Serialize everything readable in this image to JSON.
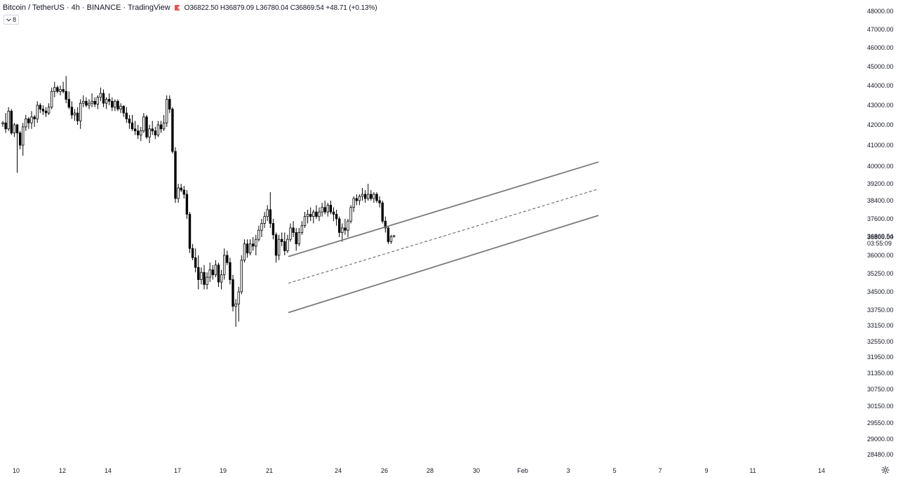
{
  "header": {
    "title": "Bitcoin / TetherUS · 4h · BINANCE · TradingView",
    "open": "O36822.50",
    "high": "H36879.09",
    "low": "L36780.04",
    "close": "C36869.54",
    "change": "+48.71 (+0.13%)"
  },
  "study_toggle": {
    "label": "8",
    "icon": "chevron-down-icon"
  },
  "price_label": {
    "price": "36869.54",
    "countdown": "03:55:09"
  },
  "settings_icon": "gear-icon",
  "chart_data": {
    "type": "candlestick",
    "symbol": "Bitcoin / TetherUS",
    "interval": "4h",
    "exchange": "BINANCE",
    "y_ticks": [
      "48000.00",
      "47000.00",
      "46000.00",
      "45000.00",
      "44000.00",
      "43000.00",
      "42000.00",
      "41000.00",
      "40000.00",
      "39200.00",
      "38400.00",
      "37600.00",
      "36800.00",
      "36000.00",
      "35250.00",
      "34500.00",
      "33750.00",
      "33150.00",
      "32550.00",
      "31950.00",
      "31350.00",
      "30750.00",
      "30150.00",
      "29550.00",
      "29000.00",
      "28480.00"
    ],
    "x_ticks": [
      "10",
      "12",
      "14",
      "17",
      "19",
      "21",
      "24",
      "26",
      "28",
      "30",
      "Feb",
      "3",
      "5",
      "7",
      "9",
      "11",
      "14"
    ],
    "scale": "log",
    "grid": false,
    "candle_style": {
      "up": "hollow",
      "down": "filled",
      "color": "#000000"
    },
    "candles": [
      [
        42050,
        42200,
        41900,
        42100
      ],
      [
        42100,
        42600,
        41600,
        41800
      ],
      [
        41800,
        42900,
        41700,
        42700
      ],
      [
        42700,
        42800,
        41500,
        41600
      ],
      [
        41600,
        42100,
        41400,
        42000
      ],
      [
        42000,
        42050,
        39700,
        41600
      ],
      [
        41600,
        41700,
        40800,
        41000
      ],
      [
        41000,
        42100,
        40500,
        41900
      ],
      [
        41900,
        42500,
        41700,
        42300
      ],
      [
        42300,
        42400,
        41800,
        42100
      ],
      [
        42100,
        42700,
        41800,
        42400
      ],
      [
        42400,
        42500,
        41900,
        42300
      ],
      [
        42300,
        43200,
        42100,
        43000
      ],
      [
        43000,
        43100,
        42600,
        42800
      ],
      [
        42800,
        43000,
        42500,
        42700
      ],
      [
        42700,
        42900,
        42400,
        42600
      ],
      [
        42600,
        43100,
        42500,
        42900
      ],
      [
        42900,
        43900,
        42800,
        43700
      ],
      [
        43700,
        44200,
        43400,
        43900
      ],
      [
        43900,
        44000,
        43600,
        43700
      ],
      [
        43700,
        44000,
        43500,
        43800
      ],
      [
        43800,
        44200,
        43600,
        43700
      ],
      [
        43700,
        44500,
        43100,
        43300
      ],
      [
        43300,
        43700,
        42800,
        42900
      ],
      [
        42900,
        43200,
        42300,
        42500
      ],
      [
        42500,
        42800,
        42200,
        42600
      ],
      [
        42600,
        42900,
        42000,
        42200
      ],
      [
        42200,
        43300,
        41800,
        43100
      ],
      [
        43100,
        43500,
        42900,
        43200
      ],
      [
        43200,
        43400,
        42900,
        43000
      ],
      [
        43000,
        43300,
        42800,
        43100
      ],
      [
        43100,
        43600,
        42900,
        43200
      ],
      [
        43200,
        43400,
        42900,
        43050
      ],
      [
        43050,
        43500,
        42800,
        43400
      ],
      [
        43400,
        43900,
        43200,
        43600
      ],
      [
        43600,
        43800,
        42900,
        43100
      ],
      [
        43100,
        43400,
        42800,
        43300
      ],
      [
        43300,
        43600,
        43000,
        43200
      ],
      [
        43200,
        43400,
        42700,
        42900
      ],
      [
        42900,
        43300,
        42700,
        43200
      ],
      [
        43200,
        43300,
        42700,
        42800
      ],
      [
        42800,
        43100,
        42600,
        42950
      ],
      [
        42950,
        43000,
        42400,
        42600
      ],
      [
        42600,
        42900,
        42100,
        42300
      ],
      [
        42300,
        42500,
        41800,
        42100
      ],
      [
        42100,
        42500,
        41700,
        41800
      ],
      [
        41800,
        42200,
        41500,
        41700
      ],
      [
        41700,
        42000,
        41300,
        41500
      ],
      [
        41500,
        41900,
        41200,
        41700
      ],
      [
        41700,
        42600,
        41600,
        42400
      ],
      [
        42400,
        42500,
        41300,
        41400
      ],
      [
        41400,
        42000,
        41100,
        41800
      ],
      [
        41800,
        42200,
        41500,
        41700
      ],
      [
        41700,
        41900,
        41300,
        41500
      ],
      [
        41500,
        42200,
        41400,
        42000
      ],
      [
        42000,
        42200,
        41600,
        41800
      ],
      [
        41800,
        42500,
        41700,
        42100
      ],
      [
        42100,
        43500,
        41900,
        43300
      ],
      [
        43300,
        43500,
        42600,
        42800
      ],
      [
        42800,
        42900,
        40600,
        40700
      ],
      [
        40700,
        40900,
        38300,
        38500
      ],
      [
        38500,
        39200,
        38300,
        39000
      ],
      [
        39000,
        39200,
        38800,
        38900
      ],
      [
        38900,
        39100,
        38500,
        38700
      ],
      [
        38700,
        38900,
        37600,
        37800
      ],
      [
        37800,
        37900,
        36100,
        36300
      ],
      [
        36300,
        36500,
        35800,
        35900
      ],
      [
        35900,
        36300,
        35300,
        35500
      ],
      [
        35500,
        36000,
        34600,
        35000
      ],
      [
        35000,
        35500,
        34800,
        35300
      ],
      [
        35300,
        35600,
        34600,
        34800
      ],
      [
        34800,
        35300,
        34600,
        35100
      ],
      [
        35100,
        35700,
        34900,
        35400
      ],
      [
        35400,
        35600,
        35000,
        35200
      ],
      [
        35200,
        35800,
        35100,
        35600
      ],
      [
        35600,
        35700,
        34700,
        34900
      ],
      [
        34900,
        35400,
        34600,
        35200
      ],
      [
        35200,
        36300,
        35000,
        36000
      ],
      [
        36000,
        36200,
        35600,
        35700
      ],
      [
        35700,
        35900,
        34800,
        35000
      ],
      [
        35000,
        35200,
        33700,
        33900
      ],
      [
        33900,
        34200,
        33100,
        34000
      ],
      [
        34000,
        34700,
        33300,
        34500
      ],
      [
        34500,
        36000,
        34400,
        35800
      ],
      [
        35800,
        36700,
        35700,
        36500
      ],
      [
        36500,
        36700,
        35900,
        36100
      ],
      [
        36100,
        36700,
        36000,
        36500
      ],
      [
        36500,
        36800,
        36200,
        36400
      ],
      [
        36400,
        36900,
        36000,
        36700
      ],
      [
        36700,
        37300,
        36600,
        37100
      ],
      [
        37100,
        37600,
        36800,
        37400
      ],
      [
        37400,
        37900,
        37200,
        37700
      ],
      [
        37700,
        38200,
        37500,
        38000
      ],
      [
        38000,
        38800,
        37200,
        37400
      ],
      [
        37400,
        37600,
        36700,
        36900
      ],
      [
        36900,
        37000,
        35700,
        36000
      ],
      [
        36000,
        36900,
        35800,
        36700
      ],
      [
        36700,
        37000,
        36400,
        36600
      ],
      [
        36600,
        37000,
        36000,
        36200
      ],
      [
        36200,
        36900,
        36100,
        36700
      ],
      [
        36700,
        37400,
        36600,
        37200
      ],
      [
        37200,
        37500,
        36800,
        37000
      ],
      [
        37000,
        37200,
        36200,
        36500
      ],
      [
        36500,
        37200,
        36400,
        37000
      ],
      [
        37000,
        37500,
        36900,
        37300
      ],
      [
        37300,
        37900,
        37200,
        37700
      ],
      [
        37700,
        38000,
        37400,
        37800
      ],
      [
        37800,
        38100,
        37500,
        37700
      ],
      [
        37700,
        38000,
        37400,
        37900
      ],
      [
        37900,
        38200,
        37600,
        37700
      ],
      [
        37700,
        38100,
        37500,
        37900
      ],
      [
        37900,
        38300,
        37700,
        38100
      ],
      [
        38100,
        38400,
        37800,
        37900
      ],
      [
        37900,
        38300,
        37700,
        38200
      ],
      [
        38200,
        38400,
        37800,
        37900
      ],
      [
        37900,
        38100,
        37500,
        37800
      ],
      [
        37800,
        38000,
        37300,
        37600
      ],
      [
        37600,
        37700,
        36800,
        37000
      ],
      [
        37000,
        37400,
        36600,
        37200
      ],
      [
        37200,
        37600,
        36900,
        37100
      ],
      [
        37100,
        37600,
        36800,
        37500
      ],
      [
        37500,
        38200,
        37400,
        38100
      ],
      [
        38100,
        38600,
        37900,
        38500
      ],
      [
        38500,
        38700,
        38200,
        38400
      ],
      [
        38400,
        38700,
        38200,
        38600
      ],
      [
        38600,
        39000,
        38400,
        38700
      ],
      [
        38700,
        38900,
        38300,
        38500
      ],
      [
        38500,
        39200,
        38400,
        38700
      ],
      [
        38700,
        38900,
        38400,
        38500
      ],
      [
        38500,
        38800,
        38300,
        38700
      ],
      [
        38700,
        38800,
        38300,
        38400
      ],
      [
        38400,
        38600,
        38100,
        38300
      ],
      [
        38300,
        38400,
        37400,
        37500
      ],
      [
        37500,
        37700,
        37000,
        37200
      ],
      [
        37200,
        37300,
        36500,
        36600
      ],
      [
        36600,
        36900,
        36500,
        36822
      ],
      [
        36822,
        36879,
        36780,
        36870
      ]
    ],
    "channel": {
      "upper": {
        "from": "Jan 22",
        "to": "Feb 4",
        "start_price": 35950,
        "end_price": 40200
      },
      "middle": {
        "from": "Jan 22",
        "to": "Feb 4",
        "start_price": 34850,
        "end_price": 38950,
        "style": "dashed"
      },
      "lower": {
        "from": "Jan 22",
        "to": "Feb 4",
        "start_price": 33650,
        "end_price": 37750
      }
    },
    "last_price": 36869.54
  }
}
